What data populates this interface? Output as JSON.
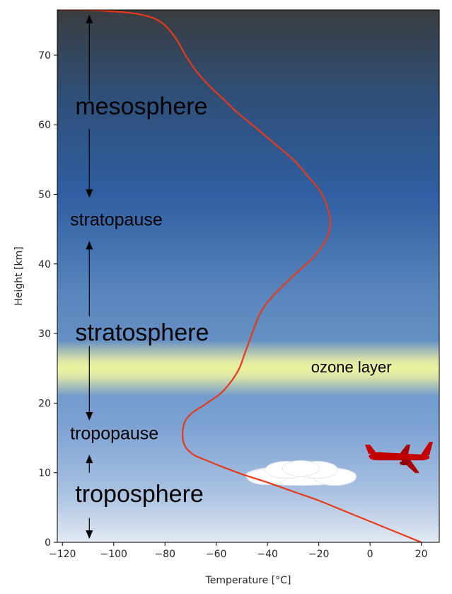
{
  "chart_data": {
    "type": "line",
    "xlabel": "Temperature [°C]",
    "ylabel": "Height [km]",
    "xlim": [
      -122,
      27
    ],
    "ylim": [
      0,
      76.5
    ],
    "xticks": [
      -120,
      -100,
      -80,
      -60,
      -40,
      -20,
      0,
      20
    ],
    "xtick_labels": [
      "−120",
      "−100",
      "−80",
      "−60",
      "−40",
      "−20",
      "0",
      "20"
    ],
    "yticks": [
      0,
      10,
      20,
      30,
      40,
      50,
      60,
      70
    ],
    "ytick_labels": [
      "0",
      "10",
      "20",
      "30",
      "40",
      "50",
      "60",
      "70"
    ],
    "grid": false,
    "series": [
      {
        "color": "#e8391a",
        "x": [
          20,
          10,
          0,
          -10,
          -20,
          -30,
          -40,
          -50,
          -58,
          -64,
          -66,
          -68,
          -70,
          -72,
          -73,
          -73,
          -72,
          -69,
          -64,
          -58,
          -54,
          -51,
          -49,
          -47,
          -45,
          -43,
          -40,
          -35,
          -29,
          -23,
          -19,
          -16.5,
          -15.5,
          -16.5,
          -19,
          -24,
          -30,
          -37,
          -44,
          -51,
          -57,
          -63,
          -68,
          -72,
          -75,
          -78,
          -81,
          -85,
          -92,
          -101,
          -112,
          -121
        ],
        "y": [
          0,
          1.5,
          3,
          4.5,
          6,
          7.3,
          8.6,
          9.8,
          10.9,
          11.8,
          12.1,
          12.4,
          12.9,
          13.7,
          14.8,
          16.2,
          17.5,
          18.7,
          19.9,
          21.5,
          23.2,
          25,
          27,
          29,
          31,
          32.8,
          34.5,
          36.5,
          38.6,
          40.6,
          42.4,
          44,
          46,
          48,
          50.2,
          52.5,
          55,
          57.2,
          59.4,
          61.5,
          63.6,
          65.7,
          67.8,
          70,
          72,
          73.5,
          74.6,
          75.4,
          76,
          76.3,
          76.5,
          76.5
        ]
      }
    ],
    "layers": [
      {
        "label": "ozone layer",
        "y_range": [
          21,
          29
        ],
        "color": "#eef2a0"
      }
    ],
    "annotations": [
      {
        "text": "mesosphere",
        "style": "large",
        "x": -115,
        "y": 61.5
      },
      {
        "text": "stratopause",
        "style": "small",
        "x": -117,
        "y": 45.5
      },
      {
        "text": "stratosphere",
        "style": "large",
        "x": -115,
        "y": 29
      },
      {
        "text": "tropopause",
        "style": "small",
        "x": -117,
        "y": 14.8
      },
      {
        "text": "troposphere",
        "style": "large",
        "x": -115,
        "y": 5.8
      },
      {
        "text": "ozone layer",
        "style": "ozone",
        "x": -23,
        "y": 24.4
      }
    ],
    "arrows": [
      {
        "x": -109.5,
        "y_from": 63.5,
        "y_to": 75.8
      },
      {
        "x": -109.5,
        "y_from": 59.4,
        "y_to": 49.5
      },
      {
        "x": -109.5,
        "y_from": 32.5,
        "y_to": 43.3
      },
      {
        "x": -109.5,
        "y_from": 28.2,
        "y_to": 17.5
      },
      {
        "x": -109.5,
        "y_from": 10,
        "y_to": 12.6
      },
      {
        "x": -109.5,
        "y_from": 3.5,
        "y_to": 0.5
      }
    ],
    "icons": [
      {
        "name": "airplane-icon",
        "color": "#c40000",
        "x": 11,
        "y": 12.2
      },
      {
        "name": "cloud-icon",
        "color": "#ffffff",
        "x": -27,
        "y": 9.6
      }
    ],
    "background": {
      "gradient_stops": [
        {
          "y": 76.5,
          "color": "#3a3d40"
        },
        {
          "y": 64,
          "color": "#2f4f78"
        },
        {
          "y": 50,
          "color": "#2f5fa2"
        },
        {
          "y": 35,
          "color": "#5a87be"
        },
        {
          "y": 17,
          "color": "#7ba1d2"
        },
        {
          "y": 7,
          "color": "#aac2e2"
        },
        {
          "y": 0,
          "color": "#e2e9f2"
        }
      ]
    }
  }
}
